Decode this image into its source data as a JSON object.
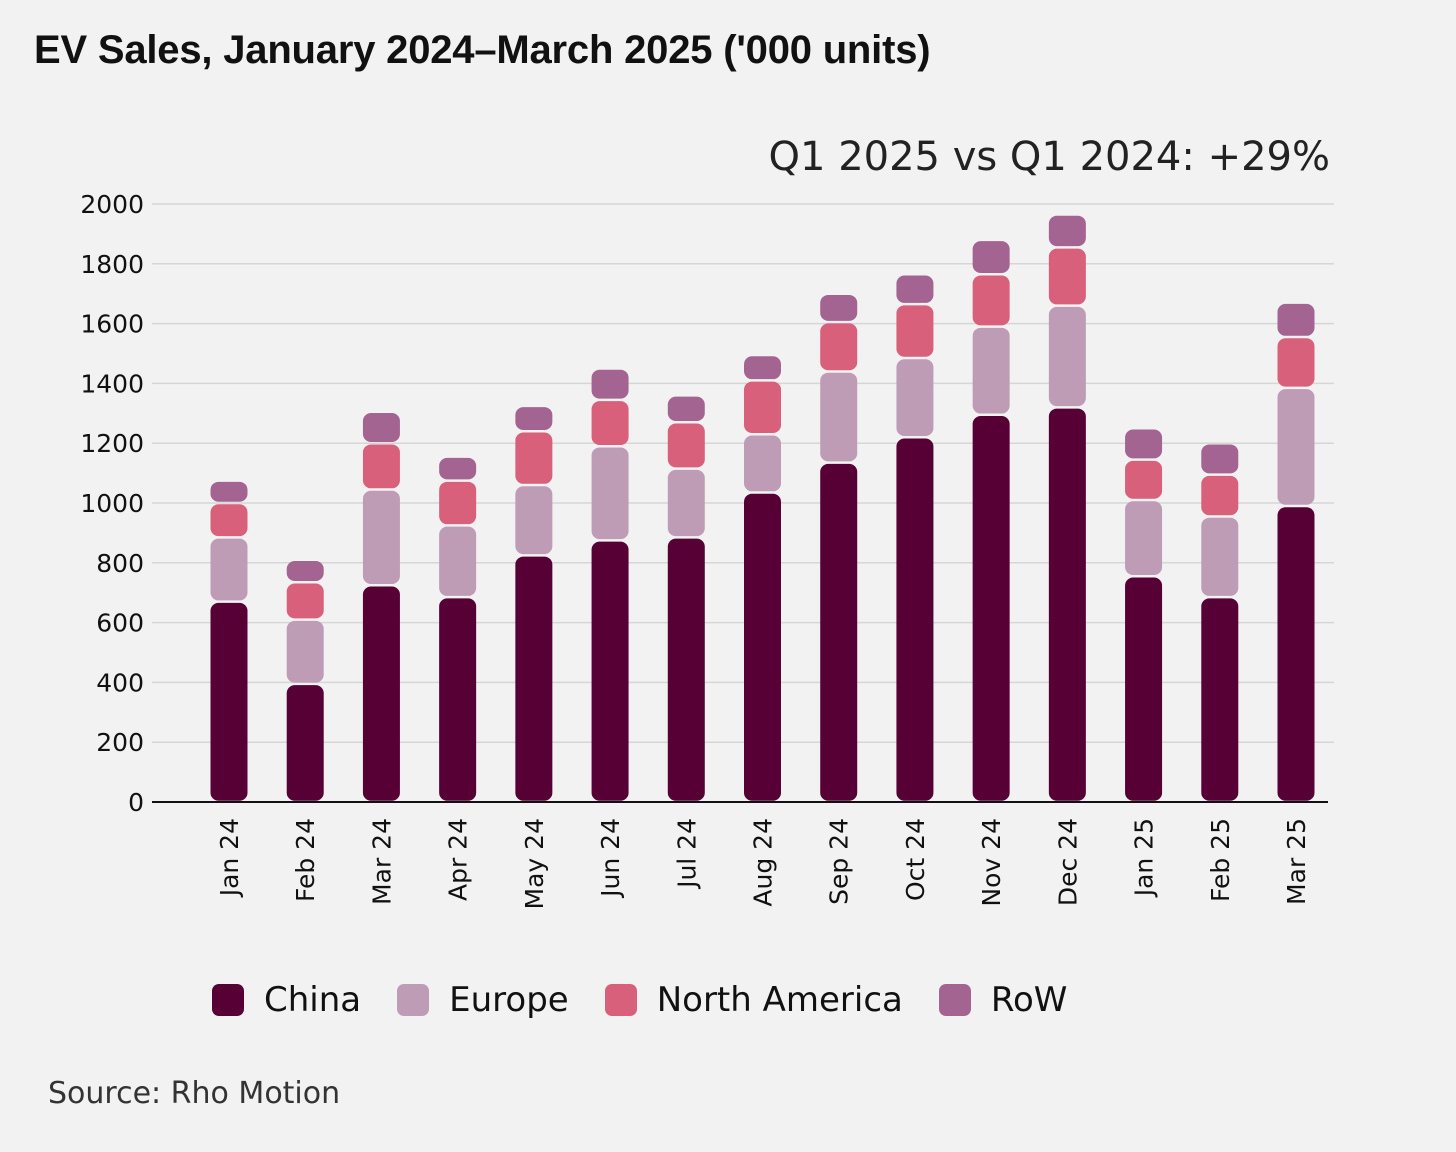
{
  "title": "EV Sales, January 2024–March 2025 ('000 units)",
  "annotation": "Q1 2025 vs Q1 2024: +29%",
  "source": "Source: Rho Motion",
  "colors": {
    "China": "#560036",
    "Europe": "#bf9cb5",
    "North America": "#d8607a",
    "RoW": "#a46491",
    "background": "#f2f2f2",
    "grid": "#d6d6d6"
  },
  "chart_data": {
    "type": "bar",
    "stacked": true,
    "title": "EV Sales, January 2024–March 2025 ('000 units)",
    "categories": [
      "Jan 24",
      "Feb 24",
      "Mar 24",
      "Apr 24",
      "May 24",
      "Jun 24",
      "Jul 24",
      "Aug 24",
      "Sep 24",
      "Oct 24",
      "Nov 24",
      "Dec 24",
      "Jan 25",
      "Feb 25",
      "Mar 25"
    ],
    "series": [
      {
        "name": "China",
        "values": [
          670,
          395,
          725,
          685,
          825,
          875,
          885,
          1035,
          1135,
          1220,
          1295,
          1320,
          755,
          685,
          990
        ]
      },
      {
        "name": "Europe",
        "values": [
          215,
          215,
          320,
          240,
          235,
          315,
          230,
          195,
          305,
          265,
          295,
          340,
          255,
          270,
          395
        ]
      },
      {
        "name": "North America",
        "values": [
          115,
          125,
          155,
          150,
          180,
          155,
          155,
          180,
          165,
          180,
          175,
          195,
          135,
          140,
          170
        ]
      },
      {
        "name": "RoW",
        "values": [
          75,
          75,
          105,
          80,
          85,
          105,
          90,
          85,
          95,
          100,
          115,
          110,
          105,
          105,
          115
        ]
      }
    ],
    "ylim": [
      0,
      2000
    ],
    "yticks": [
      0,
      200,
      400,
      600,
      800,
      1000,
      1200,
      1400,
      1600,
      1800,
      2000
    ],
    "xlabel": "",
    "ylabel": "",
    "grid": true,
    "legend_position": "bottom"
  }
}
